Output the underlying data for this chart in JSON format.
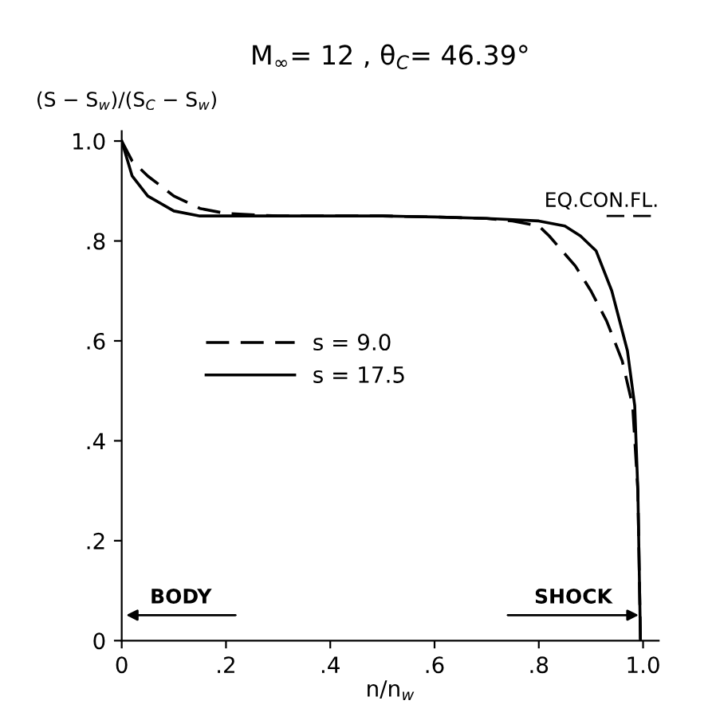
{
  "chart_data": {
    "type": "line",
    "title": "M$_{∞}$= 12 , θ$_{C}$= 46.39°",
    "xlabel": "n/n$_{w}$",
    "ylabel": "(S − S$_{w}$)/(S$_{C}$ − S$_{w}$)",
    "xlim": [
      0,
      1.03
    ],
    "ylim": [
      0,
      1.02
    ],
    "xticks": [
      0,
      {
        "value": 0.2,
        "label": ".2"
      },
      {
        "value": 0.4,
        "label": ".4"
      },
      {
        "value": 0.6,
        "label": ".6"
      },
      {
        "value": 0.8,
        "label": ".8"
      },
      {
        "value": 1.0,
        "label": "1.0"
      }
    ],
    "yticks": [
      0,
      {
        "value": 0.2,
        "label": ".2"
      },
      {
        "value": 0.4,
        "label": ".4"
      },
      {
        "value": 0.6,
        "label": ".6"
      },
      {
        "value": 0.8,
        "label": ".8"
      },
      {
        "value": 1.0,
        "label": "1.0"
      }
    ],
    "grid": false,
    "legend": "left",
    "marker": "none",
    "series": [
      {
        "name": "s = 9.0",
        "color": "#000000",
        "line_style": "dashed",
        "x": [
          0,
          0.02,
          0.05,
          0.1,
          0.15,
          0.2,
          0.3,
          0.4,
          0.5,
          0.6,
          0.7,
          0.75,
          0.8,
          0.82,
          0.87,
          0.9,
          0.93,
          0.96,
          0.98,
          0.99,
          0.995
        ],
        "values": [
          1.0,
          0.96,
          0.93,
          0.89,
          0.865,
          0.855,
          0.85,
          0.85,
          0.85,
          0.848,
          0.845,
          0.84,
          0.83,
          0.81,
          0.75,
          0.7,
          0.64,
          0.56,
          0.47,
          0.3,
          0.0
        ]
      },
      {
        "name": "s = 17.5",
        "color": "#000000",
        "line_style": "solid",
        "x": [
          0,
          0.02,
          0.05,
          0.1,
          0.15,
          0.2,
          0.3,
          0.4,
          0.5,
          0.6,
          0.7,
          0.8,
          0.85,
          0.88,
          0.91,
          0.94,
          0.97,
          0.984,
          0.99,
          0.995
        ],
        "values": [
          1.0,
          0.93,
          0.89,
          0.86,
          0.85,
          0.85,
          0.85,
          0.85,
          0.85,
          0.848,
          0.845,
          0.84,
          0.83,
          0.81,
          0.78,
          0.7,
          0.58,
          0.47,
          0.3,
          0.0
        ]
      }
    ],
    "ref_lines": [
      {
        "axis": "y",
        "value": 0.85,
        "label": "EQ.CON.FL.",
        "line_style": "dashed",
        "color": "#000000"
      }
    ],
    "annotations": [
      "BODY",
      "SHOCK"
    ]
  }
}
